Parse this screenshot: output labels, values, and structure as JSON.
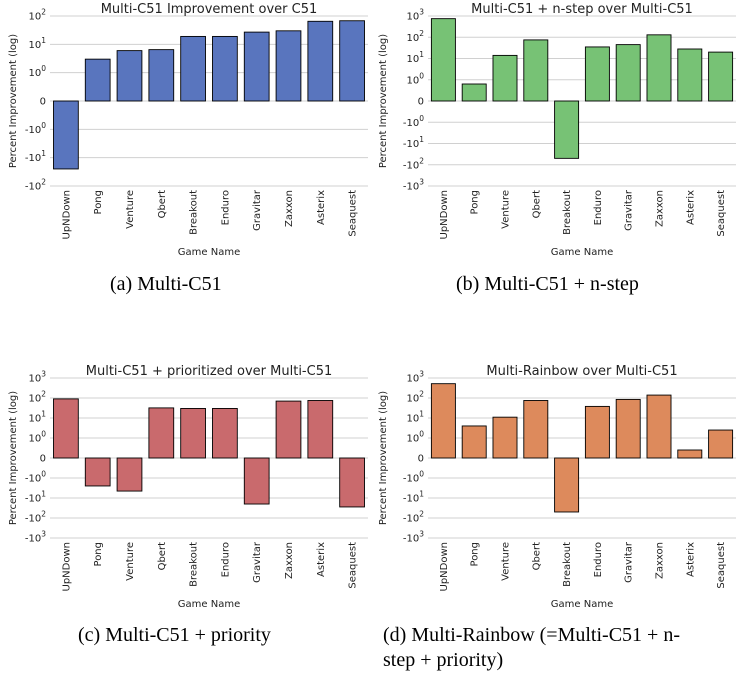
{
  "chart_data": [
    {
      "type": "bar",
      "title": "Multi-C51 Improvement over C51",
      "xlabel": "Game Name",
      "ylabel": "Percent Improvement (log)",
      "yscale": "symlog",
      "ymin_exp": 2,
      "ymax_exp": 2,
      "yticks": [
        "10^2",
        "10^1",
        "10^0",
        "0",
        "-10^0",
        "-10^1",
        "-10^2"
      ],
      "categories": [
        "UpNDown",
        "Pong",
        "Venture",
        "Qbert",
        "Breakout",
        "Enduro",
        "Gravitar",
        "Zaxxon",
        "Asterix",
        "Seaquest"
      ],
      "values": [
        -25,
        3,
        6,
        6.5,
        19,
        19,
        27,
        30,
        65,
        68
      ],
      "grid": true,
      "color": "#5975be"
    },
    {
      "type": "bar",
      "title": "Multi-C51 + n-step over Multi-C51",
      "xlabel": "Game Name",
      "ylabel": "Percent Improvement (log)",
      "yscale": "symlog",
      "ymin_exp": 3,
      "ymax_exp": 3,
      "yticks": [
        "10^3",
        "10^2",
        "10^1",
        "10^0",
        "0",
        "-10^0",
        "-10^1",
        "-10^2",
        "-10^3"
      ],
      "categories": [
        "UpNDown",
        "Pong",
        "Venture",
        "Qbert",
        "Breakout",
        "Enduro",
        "Gravitar",
        "Zaxxon",
        "Asterix",
        "Seaquest"
      ],
      "values": [
        750,
        0.8,
        14,
        75,
        -50,
        35,
        45,
        130,
        28,
        20
      ],
      "grid": true,
      "color": "#77c275"
    },
    {
      "type": "bar",
      "title": "Multi-C51 + prioritized over Multi-C51",
      "xlabel": "Game Name",
      "ylabel": "Percent Improvement (log)",
      "yscale": "symlog",
      "ymin_exp": 3,
      "ymax_exp": 3,
      "yticks": [
        "10^3",
        "10^2",
        "10^1",
        "10^0",
        "0",
        "-10^0",
        "-10^1",
        "-10^2",
        "-10^3"
      ],
      "categories": [
        "UpNDown",
        "Pong",
        "Venture",
        "Qbert",
        "Breakout",
        "Enduro",
        "Gravitar",
        "Zaxxon",
        "Asterix",
        "Seaquest"
      ],
      "values": [
        90,
        -2.5,
        -4.5,
        32,
        30,
        30,
        -20,
        70,
        75,
        -28
      ],
      "grid": true,
      "color": "#c96a6d"
    },
    {
      "type": "bar",
      "title": "Multi-Rainbow over Multi-C51",
      "xlabel": "Game Name",
      "ylabel": "Percent Improvement (log)",
      "yscale": "symlog",
      "ymin_exp": 3,
      "ymax_exp": 3,
      "yticks": [
        "10^3",
        "10^2",
        "10^1",
        "10^0",
        "0",
        "-10^0",
        "-10^1",
        "-10^2",
        "-10^3"
      ],
      "categories": [
        "UpNDown",
        "Pong",
        "Venture",
        "Qbert",
        "Breakout",
        "Enduro",
        "Gravitar",
        "Zaxxon",
        "Asterix",
        "Seaquest"
      ],
      "values": [
        520,
        4,
        11,
        75,
        -50,
        38,
        85,
        140,
        0.4,
        2.5
      ],
      "grid": true,
      "color": "#dd8a5c"
    }
  ],
  "captions": {
    "a": "(a)  Multi-C51",
    "b": "(b)  Multi-C51 + n-step",
    "c": "(c)  Multi-C51 + priority",
    "d_line1": "(d)  Multi-Rainbow (=Multi-C51 + n-",
    "d_line2": "step + priority)"
  }
}
